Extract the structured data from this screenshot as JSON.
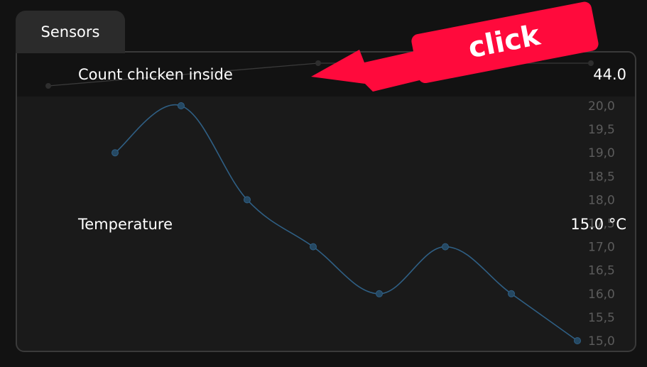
{
  "tab": {
    "label": "Sensors"
  },
  "sensors": [
    {
      "name": "Count chicken inside",
      "value": "44.0"
    },
    {
      "name": "Temperature",
      "value": "15.0 °C"
    }
  ],
  "annotation": {
    "text": "click",
    "color": "#ff0a3c"
  },
  "colors": {
    "line": "#2f5f84",
    "background": "#1a1a1a"
  },
  "chart_data": [
    {
      "type": "line",
      "ylim": [
        15,
        20
      ],
      "yticks": [
        "20,0",
        "19,5",
        "19,0",
        "18,5",
        "18,0",
        "17,5",
        "17,0",
        "16,5",
        "16,0",
        "15,5",
        "15,0"
      ],
      "series": [
        {
          "values": [
            19,
            20,
            18,
            17,
            16,
            17,
            16,
            15
          ]
        }
      ]
    }
  ]
}
